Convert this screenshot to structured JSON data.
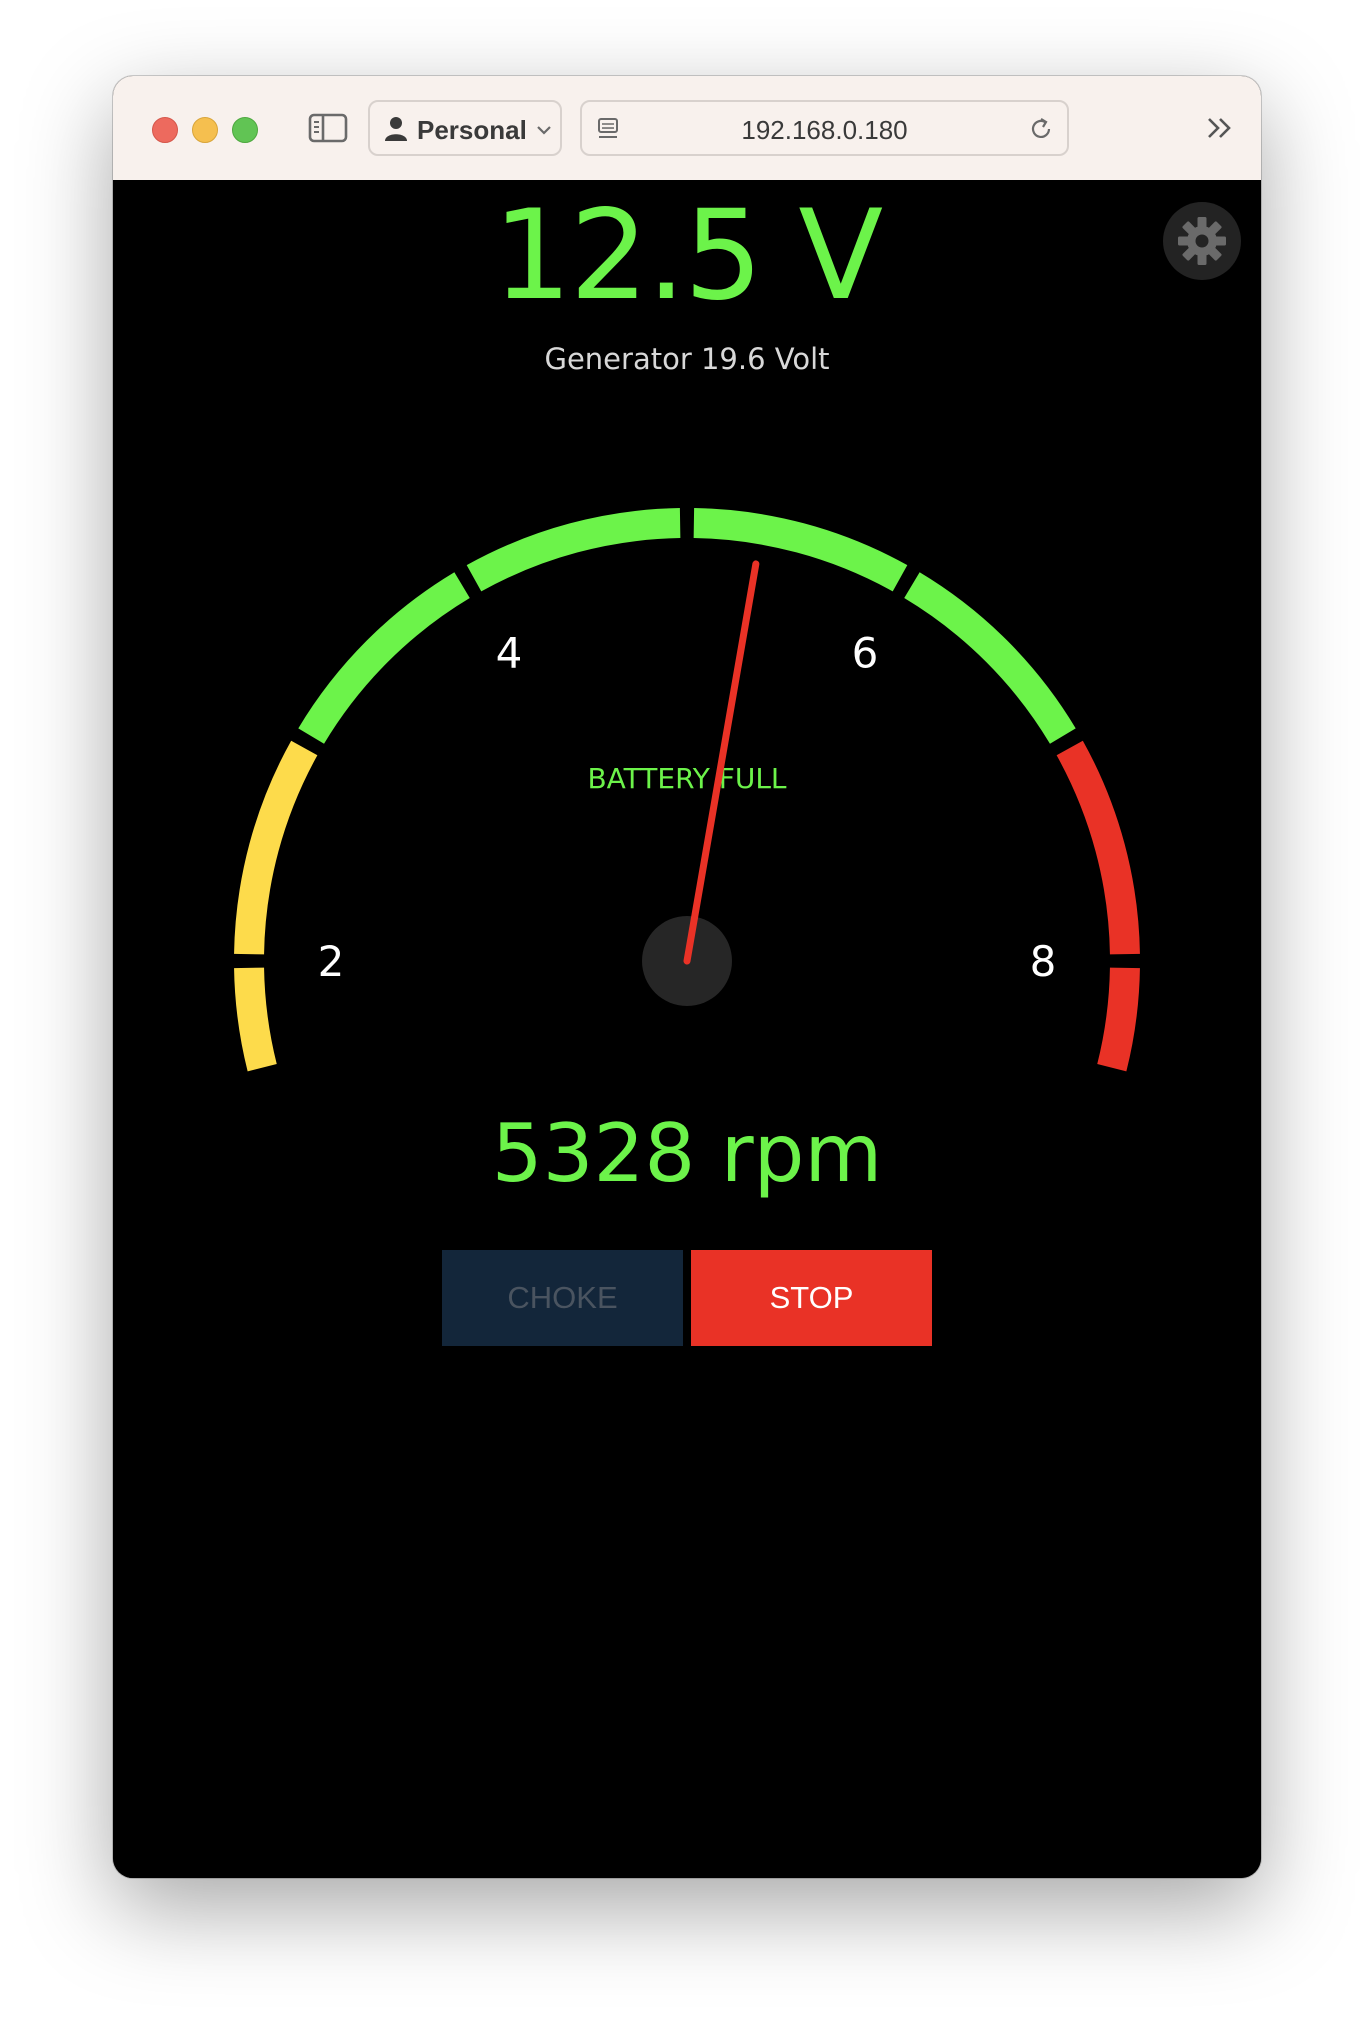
{
  "browser": {
    "profile_label": "Personal",
    "address": "192.168.0.180",
    "icons": {
      "sidebar": "sidebar-icon",
      "profile": "person-icon",
      "profile_menu": "chevron-down-icon",
      "site": "site-info-icon",
      "reload": "reload-icon",
      "more": "double-chevron-right-icon"
    }
  },
  "app": {
    "voltage_text": "12.5 V",
    "generator_text": "Generator 19.6 Volt",
    "status_text": "BATTERY FULL",
    "rpm_text": "5328 rpm",
    "choke_label": "CHOKE",
    "stop_label": "STOP",
    "settings_icon": "gear-icon"
  },
  "gauge": {
    "tick_labels": [
      "2",
      "4",
      "6",
      "8"
    ],
    "tick_values": [
      2,
      4,
      6,
      8
    ],
    "scale_min": 0,
    "scale_max": 10,
    "zones": [
      {
        "from": 1.5,
        "to": 3.0,
        "color": "#fddb4b"
      },
      {
        "from": 3.0,
        "to": 7.0,
        "color": "#6cf34a"
      },
      {
        "from": 7.0,
        "to": 8.5,
        "color": "#e93226"
      }
    ],
    "needle_value": 5.328,
    "needle_color": "#e93226"
  },
  "colors": {
    "accent_green": "#6cf34a",
    "stop_red": "#e93226",
    "choke_bg": "#13263a",
    "background": "#000000"
  }
}
